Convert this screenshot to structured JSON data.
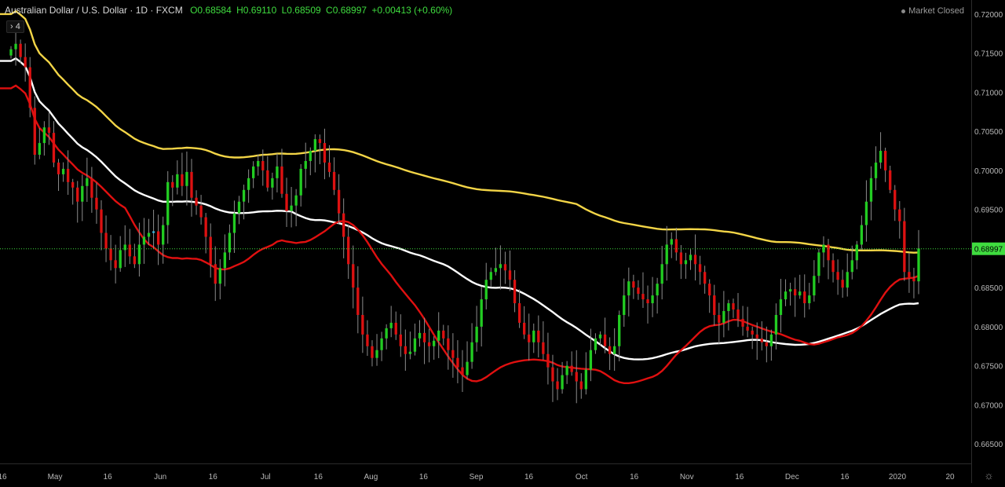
{
  "header": {
    "title": "Australian Dollar / U.S. Dollar · 1D · FXCM",
    "ohlc": {
      "open": "O0.68584",
      "high": "H0.69110",
      "low": "L0.68509",
      "close": "C0.68997",
      "change": "+0.00413 (+0.60%)"
    }
  },
  "status": {
    "label": "Market Closed"
  },
  "indicator_badge": {
    "label": "4"
  },
  "price_badge": {
    "label": "0.68997"
  },
  "colors": {
    "up": "#22cc22",
    "down": "#dd1111",
    "neutral": "#33b9e6",
    "ma_fast": "#e01010",
    "ma_mid": "#ffffff",
    "ma_slow": "#f3d547",
    "background": "#000000",
    "last_price": "#3fdc3f"
  },
  "chart_data": {
    "type": "candlestick",
    "y_range": [
      0.6625,
      0.7215
    ],
    "y_ticks": [
      "0.72000",
      "0.71500",
      "0.71000",
      "0.70500",
      "0.70000",
      "0.69500",
      "0.69000",
      "0.68500",
      "0.68000",
      "0.67500",
      "0.67000",
      "0.66500"
    ],
    "x_ticks": [
      "16",
      "May",
      "16",
      "Jun",
      "16",
      "Jul",
      "16",
      "Aug",
      "16",
      "Sep",
      "16",
      "Oct",
      "16",
      "Nov",
      "16",
      "Dec",
      "16",
      "2020",
      "20"
    ],
    "last_price": 0.68997,
    "closes": [
      0.7155,
      0.7162,
      0.7145,
      0.7132,
      0.708,
      0.702,
      0.7035,
      0.7055,
      0.7048,
      0.701,
      0.6995,
      0.7002,
      0.6985,
      0.6978,
      0.696,
      0.698,
      0.699,
      0.6965,
      0.695,
      0.692,
      0.69,
      0.6885,
      0.6875,
      0.6898,
      0.6905,
      0.689,
      0.688,
      0.6905,
      0.6915,
      0.692,
      0.6922,
      0.6905,
      0.693,
      0.6985,
      0.6978,
      0.6995,
      0.698,
      0.6998,
      0.6965,
      0.6955,
      0.694,
      0.6915,
      0.688,
      0.6855,
      0.6875,
      0.6895,
      0.692,
      0.6945,
      0.696,
      0.6975,
      0.699,
      0.7005,
      0.7012,
      0.7,
      0.6978,
      0.699,
      0.7005,
      0.697,
      0.6948,
      0.6955,
      0.6968,
      0.7002,
      0.7012,
      0.7025,
      0.704,
      0.7035,
      0.701,
      0.6998,
      0.6975,
      0.6945,
      0.6915,
      0.688,
      0.685,
      0.6815,
      0.679,
      0.6775,
      0.676,
      0.677,
      0.6785,
      0.6798,
      0.6805,
      0.679,
      0.6775,
      0.6765,
      0.6768,
      0.6785,
      0.6792,
      0.678,
      0.6775,
      0.6782,
      0.6795,
      0.6785,
      0.677,
      0.676,
      0.6748,
      0.6738,
      0.6755,
      0.678,
      0.68,
      0.6835,
      0.686,
      0.687,
      0.6875,
      0.688,
      0.6872,
      0.686,
      0.683,
      0.6805,
      0.679,
      0.678,
      0.6795,
      0.678,
      0.6765,
      0.6748,
      0.673,
      0.672,
      0.6738,
      0.675,
      0.6742,
      0.673,
      0.672,
      0.6745,
      0.677,
      0.6785,
      0.679,
      0.6775,
      0.6765,
      0.6775,
      0.6815,
      0.684,
      0.6858,
      0.685,
      0.6842,
      0.6835,
      0.683,
      0.684,
      0.6855,
      0.688,
      0.6905,
      0.6912,
      0.6895,
      0.688,
      0.6885,
      0.6892,
      0.688,
      0.687,
      0.6855,
      0.684,
      0.6815,
      0.6805,
      0.682,
      0.683,
      0.6822,
      0.681,
      0.68,
      0.6795,
      0.679,
      0.6785,
      0.678,
      0.6775,
      0.679,
      0.6815,
      0.6835,
      0.6845,
      0.6848,
      0.684,
      0.6845,
      0.683,
      0.684,
      0.6865,
      0.6895,
      0.6905,
      0.6885,
      0.687,
      0.686,
      0.685,
      0.687,
      0.6885,
      0.6905,
      0.693,
      0.696,
      0.699,
      0.701,
      0.7025,
      0.7,
      0.6975,
      0.695,
      0.6935,
      0.687,
      0.6862,
      0.6858,
      0.69
    ],
    "ma_fast": {
      "start_value": 0.7105,
      "end_value": 0.6865
    },
    "ma_mid": {
      "start_value": 0.714,
      "end_value": 0.683
    },
    "ma_slow": {
      "start_value": 0.72,
      "end_value": 0.6895
    }
  }
}
